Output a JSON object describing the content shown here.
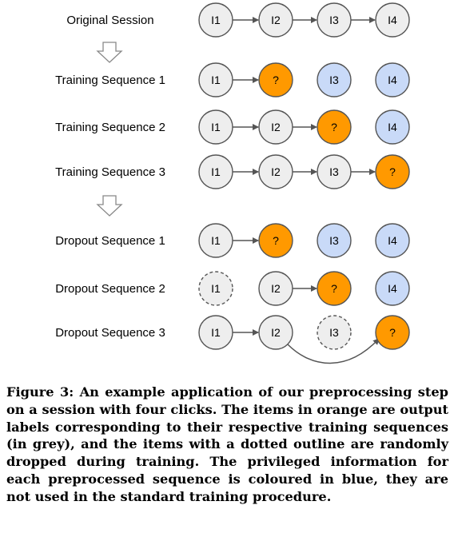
{
  "diagram": {
    "colors": {
      "grey": "#eeeeee",
      "orange": "#ff9900",
      "blue": "#c9daf8",
      "stroke": "#555555"
    },
    "rows": [
      {
        "label": "Original Session",
        "nodes": [
          {
            "text": "I1",
            "fill": "grey",
            "dashed": false
          },
          {
            "text": "I2",
            "fill": "grey",
            "dashed": false
          },
          {
            "text": "I3",
            "fill": "grey",
            "dashed": false
          },
          {
            "text": "I4",
            "fill": "grey",
            "dashed": false
          }
        ],
        "arrows": [
          [
            0,
            1
          ],
          [
            1,
            2
          ],
          [
            2,
            3
          ]
        ]
      },
      {
        "label": "Training Sequence 1",
        "nodes": [
          {
            "text": "I1",
            "fill": "grey",
            "dashed": false
          },
          {
            "text": "?",
            "fill": "orange",
            "dashed": false
          },
          {
            "text": "I3",
            "fill": "blue",
            "dashed": false
          },
          {
            "text": "I4",
            "fill": "blue",
            "dashed": false
          }
        ],
        "arrows": [
          [
            0,
            1
          ]
        ]
      },
      {
        "label": "Training Sequence 2",
        "nodes": [
          {
            "text": "I1",
            "fill": "grey",
            "dashed": false
          },
          {
            "text": "I2",
            "fill": "grey",
            "dashed": false
          },
          {
            "text": "?",
            "fill": "orange",
            "dashed": false
          },
          {
            "text": "I4",
            "fill": "blue",
            "dashed": false
          }
        ],
        "arrows": [
          [
            0,
            1
          ],
          [
            1,
            2
          ]
        ]
      },
      {
        "label": "Training Sequence 3",
        "nodes": [
          {
            "text": "I1",
            "fill": "grey",
            "dashed": false
          },
          {
            "text": "I2",
            "fill": "grey",
            "dashed": false
          },
          {
            "text": "I3",
            "fill": "grey",
            "dashed": false
          },
          {
            "text": "?",
            "fill": "orange",
            "dashed": false
          }
        ],
        "arrows": [
          [
            0,
            1
          ],
          [
            1,
            2
          ],
          [
            2,
            3
          ]
        ]
      },
      {
        "label": "Dropout Sequence 1",
        "nodes": [
          {
            "text": "I1",
            "fill": "grey",
            "dashed": false
          },
          {
            "text": "?",
            "fill": "orange",
            "dashed": false
          },
          {
            "text": "I3",
            "fill": "blue",
            "dashed": false
          },
          {
            "text": "I4",
            "fill": "blue",
            "dashed": false
          }
        ],
        "arrows": [
          [
            0,
            1
          ]
        ]
      },
      {
        "label": "Dropout Sequence 2",
        "nodes": [
          {
            "text": "I1",
            "fill": "grey",
            "dashed": true
          },
          {
            "text": "I2",
            "fill": "grey",
            "dashed": false
          },
          {
            "text": "?",
            "fill": "orange",
            "dashed": false
          },
          {
            "text": "I4",
            "fill": "blue",
            "dashed": false
          }
        ],
        "arrows": [
          [
            1,
            2
          ]
        ]
      },
      {
        "label": "Dropout Sequence 3",
        "nodes": [
          {
            "text": "I1",
            "fill": "grey",
            "dashed": false
          },
          {
            "text": "I2",
            "fill": "grey",
            "dashed": false
          },
          {
            "text": "I3",
            "fill": "grey",
            "dashed": true
          },
          {
            "text": "?",
            "fill": "orange",
            "dashed": false
          }
        ],
        "arrows": [
          [
            0,
            1
          ],
          [
            1,
            3
          ]
        ]
      }
    ]
  },
  "caption": "Figure 3: An example application of our preprocessing step on a session with four clicks. The items in orange are output labels corresponding to their respective training sequences (in grey), and the items with a dotted outline are randomly dropped during training. The privileged information for each preprocessed sequence is coloured in blue, they are not used in the standard training procedure."
}
